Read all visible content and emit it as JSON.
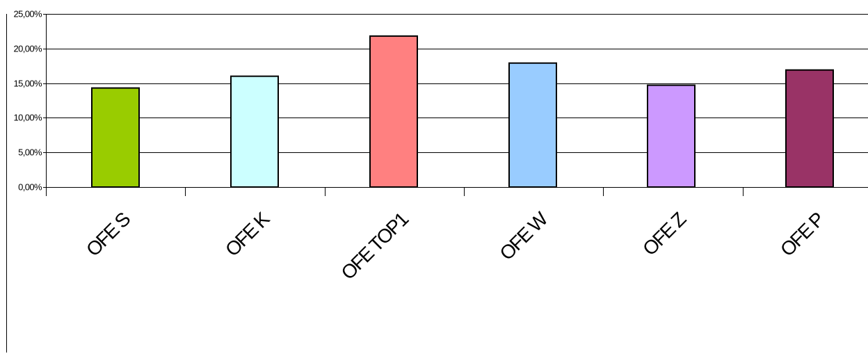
{
  "chart_data": {
    "type": "bar",
    "categories": [
      "OFE S",
      "OFE K",
      "OFE TOP1",
      "OFE W",
      "OFE Z",
      "OFE P"
    ],
    "values": [
      14.3,
      16.0,
      21.8,
      17.9,
      14.7,
      16.9
    ],
    "colors": [
      "#99cc00",
      "#ccffff",
      "#ff8080",
      "#99ccff",
      "#cc99ff",
      "#993366"
    ],
    "ylim": [
      0,
      25
    ],
    "yticks": [
      0,
      5,
      10,
      15,
      20,
      25
    ],
    "ytick_labels": [
      "0,00%",
      "5,00%",
      "10,00%",
      "15,00%",
      "20,00%",
      "25,00%"
    ],
    "grid": true,
    "legend": "none"
  }
}
